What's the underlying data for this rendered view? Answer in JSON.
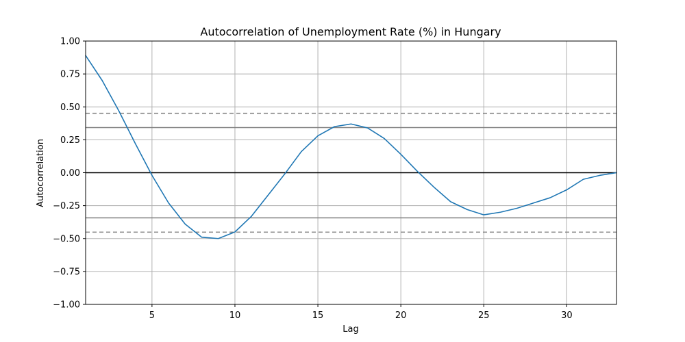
{
  "chart_data": {
    "type": "line",
    "title": "Autocorrelation of Unemployment Rate (%) in Hungary",
    "xlabel": "Lag",
    "ylabel": "Autocorrelation",
    "xlim": [
      1,
      33
    ],
    "ylim": [
      -1.0,
      1.0
    ],
    "grid": true,
    "x_ticks": [
      5,
      10,
      15,
      20,
      25,
      30
    ],
    "y_ticks": [
      -1.0,
      -0.75,
      -0.5,
      -0.25,
      0.0,
      0.25,
      0.5,
      0.75,
      1.0
    ],
    "x_tick_labels": [
      "5",
      "10",
      "15",
      "20",
      "25",
      "30"
    ],
    "y_tick_labels": [
      "−1.00",
      "−0.75",
      "−0.50",
      "−0.25",
      "0.00",
      "0.25",
      "0.50",
      "0.75",
      "1.00"
    ],
    "series": [
      {
        "color": "#1f77b4",
        "x": [
          1,
          2,
          3,
          4,
          5,
          6,
          7,
          8,
          9,
          10,
          11,
          12,
          13,
          14,
          15,
          16,
          17,
          18,
          19,
          20,
          21,
          22,
          23,
          24,
          25,
          26,
          27,
          28,
          29,
          30,
          31,
          32,
          33
        ],
        "y": [
          0.89,
          0.7,
          0.47,
          0.22,
          -0.02,
          -0.23,
          -0.39,
          -0.49,
          -0.5,
          -0.45,
          -0.33,
          -0.17,
          -0.01,
          0.16,
          0.28,
          0.35,
          0.37,
          0.34,
          0.26,
          0.14,
          0.01,
          -0.11,
          -0.22,
          -0.28,
          -0.32,
          -0.3,
          -0.27,
          -0.23,
          -0.19,
          -0.13,
          -0.05,
          -0.02,
          0.0
        ]
      }
    ],
    "reference_lines": [
      {
        "y": 0.0,
        "style": "solid",
        "color": "#000000"
      },
      {
        "y": 0.343,
        "style": "solid",
        "color": "#808080"
      },
      {
        "y": -0.343,
        "style": "solid",
        "color": "#808080"
      },
      {
        "y": 0.451,
        "style": "dashed",
        "color": "#808080"
      },
      {
        "y": -0.451,
        "style": "dashed",
        "color": "#808080"
      }
    ]
  }
}
